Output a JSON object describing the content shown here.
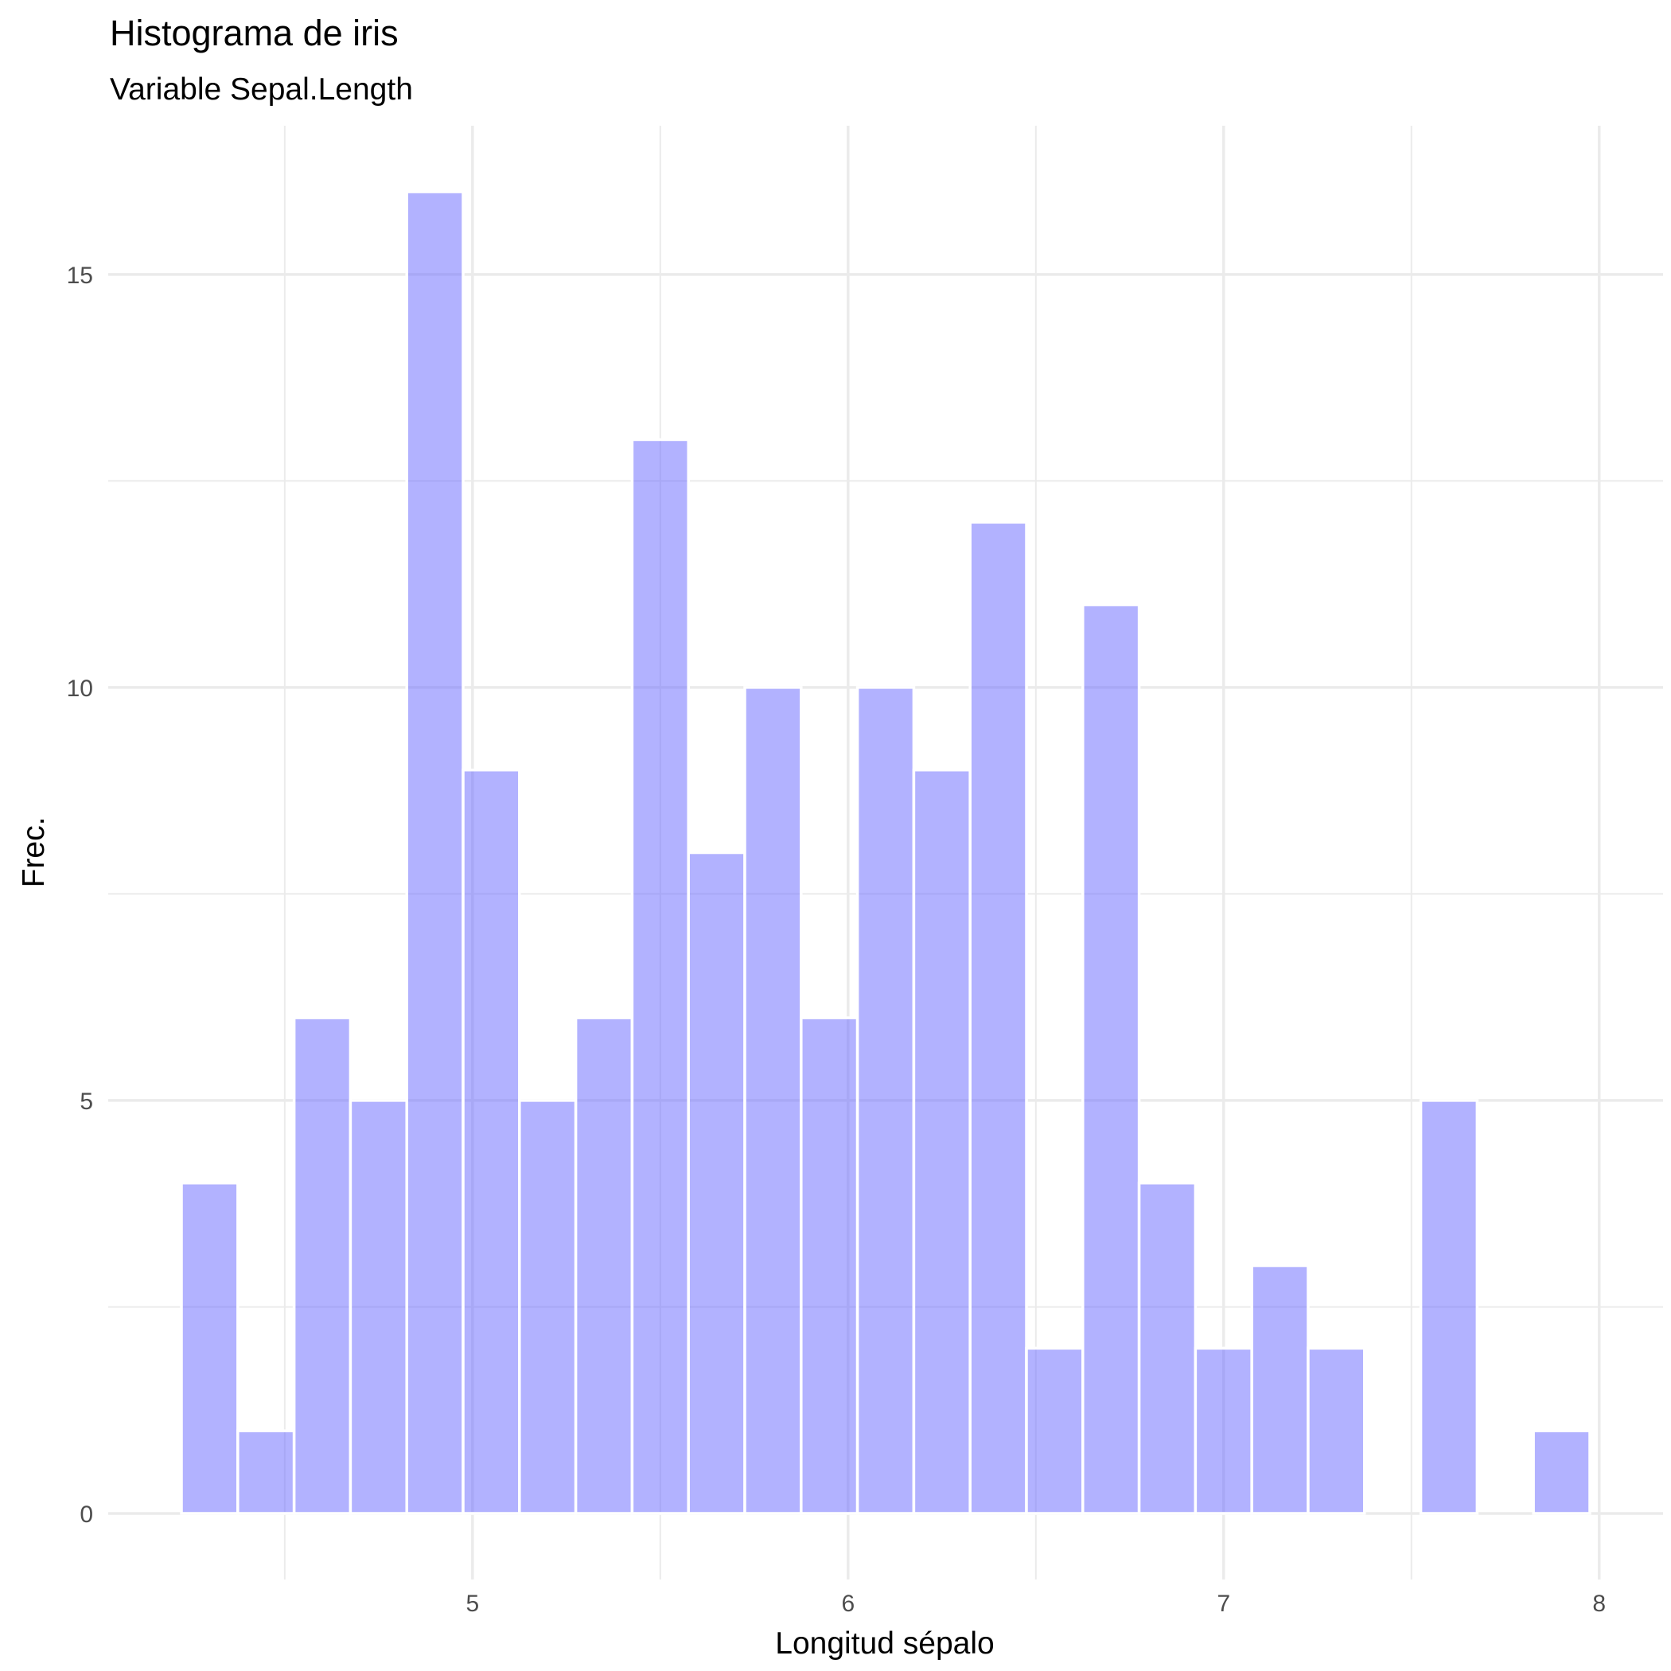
{
  "chart_data": {
    "type": "bar",
    "title": "Histograma de iris",
    "subtitle": "Variable Sepal.Length",
    "xlabel": "Longitud sépalo",
    "ylabel": "Frec.",
    "bin_width": 0.15,
    "bin_start": 4.225,
    "x_bin_centers": [
      4.3,
      4.45,
      4.6,
      4.75,
      4.9,
      5.05,
      5.2,
      5.35,
      5.5,
      5.65,
      5.8,
      5.95,
      6.1,
      6.25,
      6.4,
      6.55,
      6.7,
      6.85,
      7.0,
      7.15,
      7.3,
      7.45,
      7.6,
      7.75,
      7.9
    ],
    "values": [
      4,
      1,
      6,
      5,
      16,
      9,
      5,
      6,
      13,
      8,
      10,
      6,
      10,
      9,
      12,
      2,
      11,
      4,
      2,
      3,
      2,
      0,
      5,
      0,
      1
    ],
    "x_ticks": [
      "5",
      "6",
      "7",
      "8"
    ],
    "x_tick_values": [
      5,
      6,
      7,
      8
    ],
    "y_ticks": [
      "0",
      "5",
      "10",
      "15"
    ],
    "y_tick_values": [
      0,
      5,
      10,
      15
    ],
    "xlim": [
      4.03,
      8.17
    ],
    "ylim": [
      -0.8,
      16.8
    ],
    "grid": true,
    "bar_color": "#6666FF",
    "bar_opacity": 0.5,
    "bar_outline": "#FFFFFF",
    "grid_color": "#EBEBEB"
  }
}
